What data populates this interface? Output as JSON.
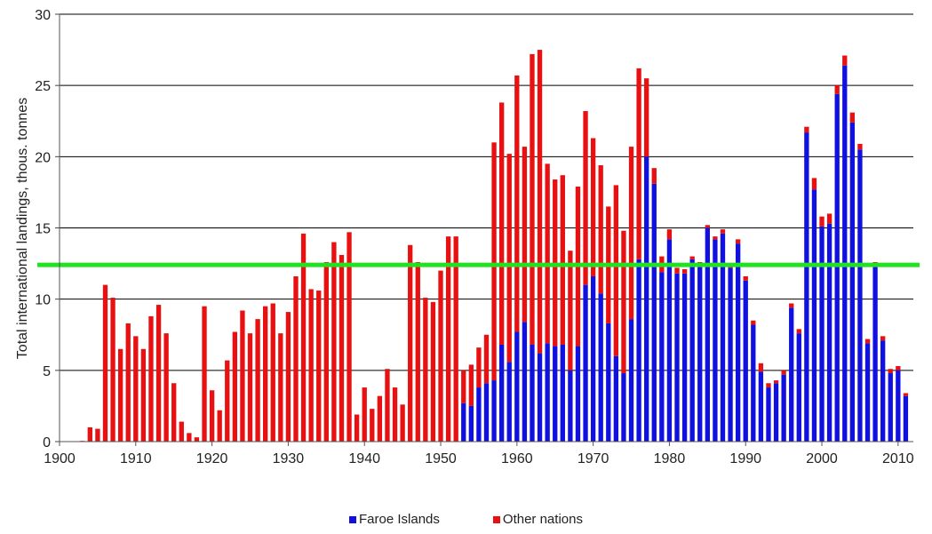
{
  "chart_data": {
    "type": "bar",
    "stacked": true,
    "title": "",
    "xlabel": "",
    "ylabel": "Total international landings, thous. tonnes",
    "xlim": [
      1900,
      2012
    ],
    "ylim": [
      0,
      30
    ],
    "x_ticks": [
      1900,
      1910,
      1920,
      1930,
      1940,
      1950,
      1960,
      1970,
      1980,
      1990,
      2000,
      2010
    ],
    "y_ticks": [
      0,
      5,
      10,
      15,
      20,
      25,
      30
    ],
    "grid": "horizontal",
    "legend_position": "bottom-center",
    "reference_line": {
      "y": 12.4,
      "color": "#22e022"
    },
    "x": [
      1903,
      1904,
      1905,
      1906,
      1907,
      1908,
      1909,
      1910,
      1911,
      1912,
      1913,
      1914,
      1915,
      1916,
      1917,
      1918,
      1919,
      1920,
      1921,
      1922,
      1923,
      1924,
      1925,
      1926,
      1927,
      1928,
      1929,
      1930,
      1931,
      1932,
      1933,
      1934,
      1935,
      1936,
      1937,
      1938,
      1939,
      1940,
      1941,
      1942,
      1943,
      1944,
      1945,
      1946,
      1947,
      1948,
      1949,
      1950,
      1951,
      1952,
      1953,
      1954,
      1955,
      1956,
      1957,
      1958,
      1959,
      1960,
      1961,
      1962,
      1963,
      1964,
      1965,
      1966,
      1967,
      1968,
      1969,
      1970,
      1971,
      1972,
      1973,
      1974,
      1975,
      1976,
      1977,
      1978,
      1979,
      1980,
      1981,
      1982,
      1983,
      1984,
      1985,
      1986,
      1987,
      1988,
      1989,
      1990,
      1991,
      1992,
      1993,
      1994,
      1995,
      1996,
      1997,
      1998,
      1999,
      2000,
      2001,
      2002,
      2003,
      2004,
      2005,
      2006,
      2007,
      2008,
      2009,
      2010,
      2011
    ],
    "series": [
      {
        "name": "Faroe Islands",
        "color": "#1010e0",
        "values": [
          0,
          0,
          0,
          0,
          0,
          0,
          0,
          0,
          0,
          0,
          0,
          0,
          0,
          0,
          0,
          0,
          0,
          0,
          0,
          0,
          0,
          0,
          0,
          0,
          0,
          0,
          0,
          0,
          0,
          0,
          0,
          0,
          0,
          0,
          0,
          0,
          0,
          0,
          0,
          0,
          0,
          0,
          0,
          0,
          0,
          0,
          0,
          0,
          0,
          0,
          2.7,
          2.5,
          3.8,
          4.1,
          4.3,
          6.8,
          5.6,
          7.7,
          8.4,
          6.8,
          6.2,
          6.9,
          6.7,
          6.8,
          5,
          6.7,
          11,
          11.6,
          10.4,
          8.3,
          6,
          4.8,
          8.6,
          12.8,
          20,
          18.1,
          11.9,
          14.2,
          11.8,
          11.8,
          12.8,
          12.4,
          15,
          14.2,
          14.6,
          12.2,
          13.9,
          11.3,
          8.2,
          4.9,
          3.8,
          4.1,
          4.7,
          9.4,
          7.6,
          21.7,
          17.7,
          15.1,
          15.3,
          24.4,
          26.4,
          22.4,
          20.5,
          6.9,
          12.4,
          7.1,
          4.8,
          5,
          3.2
        ]
      },
      {
        "name": "Other nations",
        "color": "#e81010",
        "values": [
          0.05,
          1,
          0.9,
          11,
          10.1,
          6.5,
          8.3,
          7.4,
          6.5,
          8.8,
          9.6,
          7.6,
          4.1,
          1.4,
          0.6,
          0.3,
          9.5,
          3.6,
          2.2,
          5.7,
          7.7,
          9.2,
          7.6,
          8.6,
          9.5,
          9.7,
          7.6,
          9.1,
          11.6,
          14.6,
          10.7,
          10.6,
          12.6,
          14,
          13.1,
          14.7,
          1.9,
          3.8,
          2.3,
          3.2,
          5.1,
          3.8,
          2.6,
          13.8,
          12.6,
          10.1,
          9.8,
          12,
          14.4,
          14.4,
          2.3,
          2.9,
          2.8,
          3.4,
          16.7,
          17,
          14.6,
          18,
          12.3,
          20.4,
          21.3,
          12.6,
          11.7,
          11.9,
          8.4,
          11.2,
          12.2,
          9.7,
          9,
          8.2,
          12,
          10,
          12.1,
          13.4,
          5.5,
          1.1,
          1.1,
          0.7,
          0.4,
          0.3,
          0.2,
          0.2,
          0.2,
          0.2,
          0.3,
          0.2,
          0.3,
          0.3,
          0.3,
          0.6,
          0.3,
          0.2,
          0.3,
          0.3,
          0.3,
          0.4,
          0.8,
          0.7,
          0.7,
          0.6,
          0.7,
          0.7,
          0.4,
          0.3,
          0.2,
          0.3,
          0.3,
          0.3,
          0.2
        ]
      }
    ]
  }
}
